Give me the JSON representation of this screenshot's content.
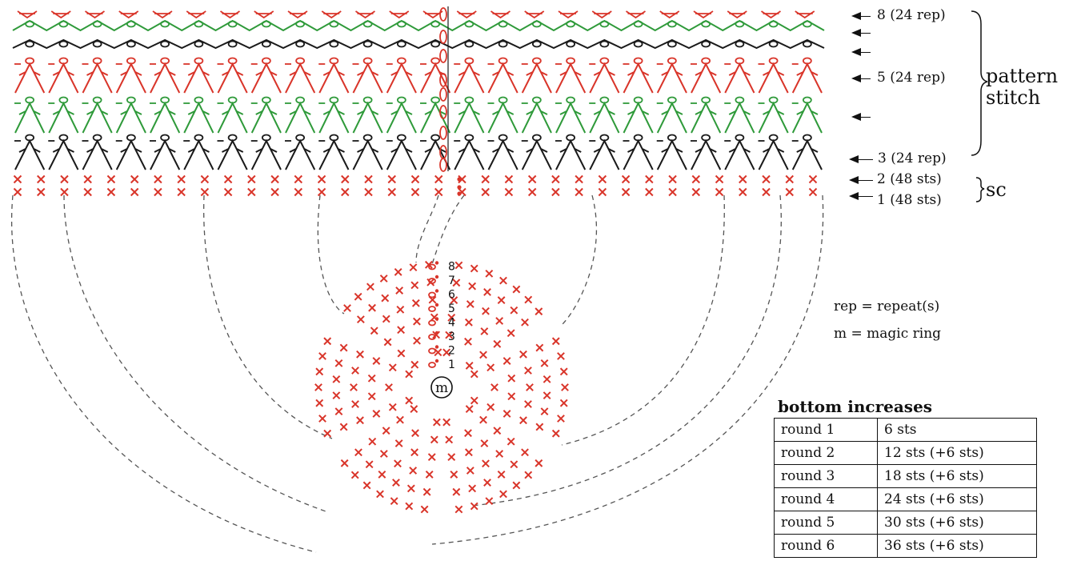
{
  "row_labels": [
    {
      "text": "8 (24 rep)"
    },
    {
      "text": ""
    },
    {
      "text": ""
    },
    {
      "text": "5 (24 rep)"
    },
    {
      "text": ""
    },
    {
      "text": "3 (24 rep)"
    },
    {
      "text": "2 (48 sts)"
    },
    {
      "text": "1 (48 sts)"
    }
  ],
  "group_labels": {
    "pattern_stitch": "pattern\nstitch",
    "sc": "sc"
  },
  "bottom_center": {
    "ring_label": "m",
    "round_numbers": [
      "1",
      "2",
      "3",
      "4",
      "5",
      "6",
      "7",
      "8"
    ]
  },
  "legend": {
    "rep": "rep = repeat(s)",
    "m": "m = magic ring"
  },
  "bottom_increases": {
    "title": "bottom increases",
    "rows": [
      {
        "round": "round 1",
        "sts": "6 sts"
      },
      {
        "round": "round 2",
        "sts": "12 sts (+6 sts)"
      },
      {
        "round": "round 3",
        "sts": "18 sts (+6 sts)"
      },
      {
        "round": "round 4",
        "sts": "24 sts (+6 sts)"
      },
      {
        "round": "round 5",
        "sts": "30 sts (+6 sts)"
      },
      {
        "round": "round 6",
        "sts": "36 sts (+6 sts)"
      }
    ]
  },
  "colors": {
    "red": "#d9352a",
    "green": "#2f9a3a",
    "black": "#1a1a1a",
    "dash": "#555555"
  }
}
